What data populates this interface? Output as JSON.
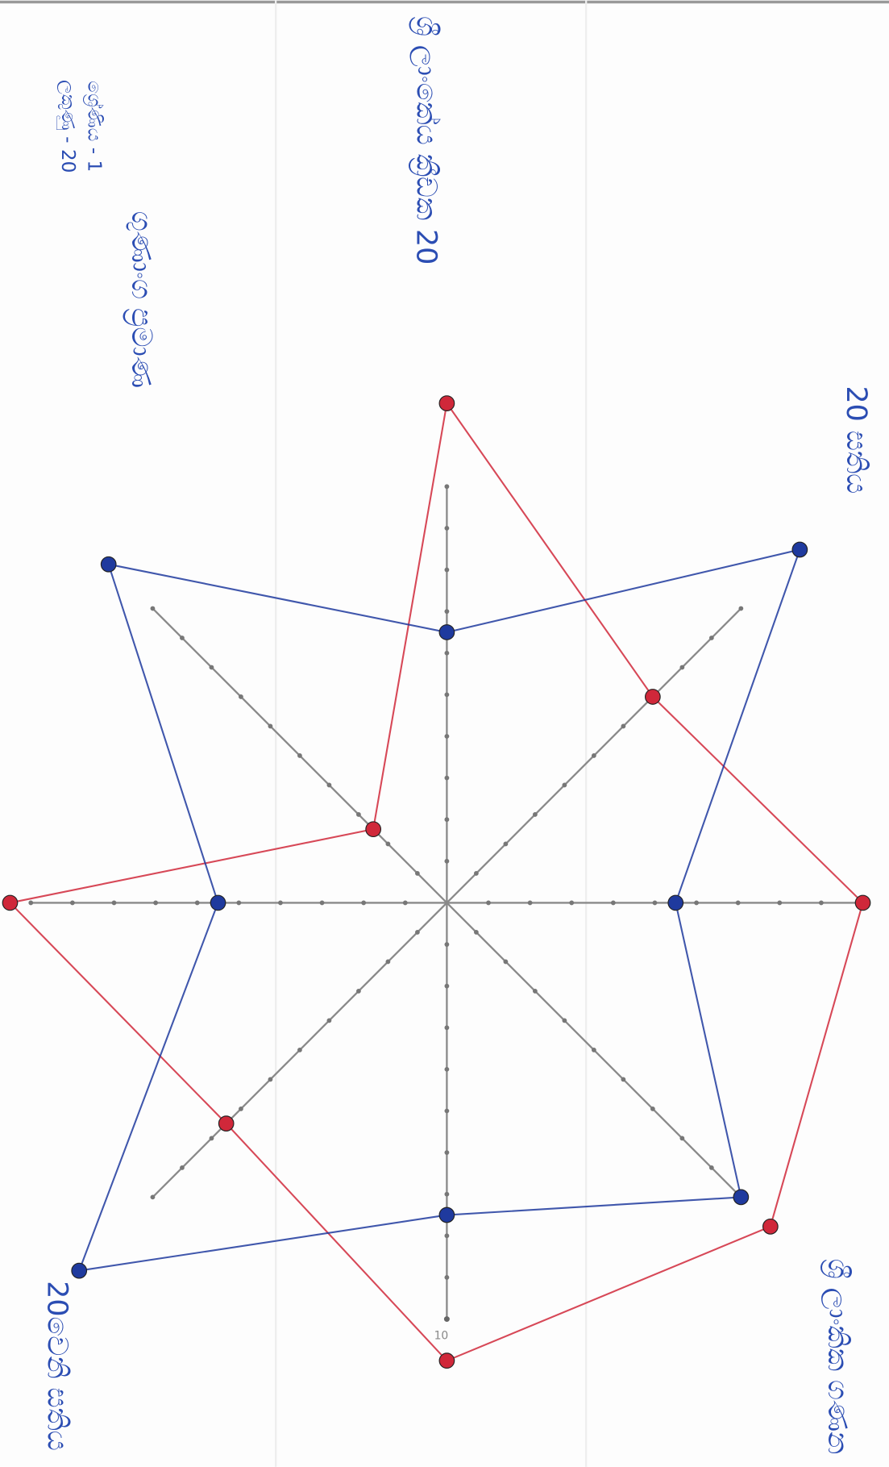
{
  "chart_data": {
    "type": "radar",
    "categories": [
      null,
      null,
      null,
      null,
      null,
      null,
      null,
      null
    ],
    "rlim": [
      0,
      10
    ],
    "rticks": [
      10
    ],
    "series": [
      {
        "color": "#d0283a",
        "values": [
          12,
          7,
          10,
          11,
          11,
          7.5,
          10.5,
          2.5
        ]
      },
      {
        "color": "#1f3a9e",
        "values": [
          6.5,
          12,
          5.5,
          10,
          7.5,
          12.5,
          5.5,
          11.5
        ]
      }
    ],
    "annotations": [
      "20 සතිය",
      "ශ්‍රී ලාංකික ගණන",
      "20වෙනි සතිය",
      "ශ්‍රී ලාංකේය ක්‍රීඩක 20",
      "ගුණාංග ප්‍රමාණ",
      "ශ්‍රේණිය - 1",
      "ලකුණු - 20"
    ]
  }
}
